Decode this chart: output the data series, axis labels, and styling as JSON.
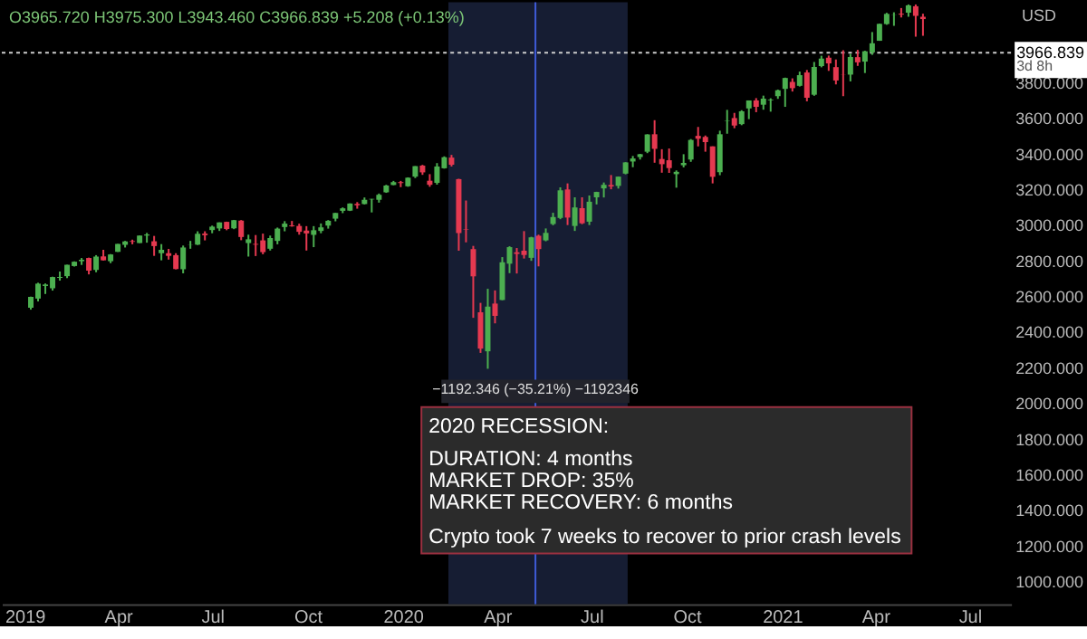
{
  "chart_data": {
    "type": "candlestick",
    "subtitle": "O3965.720 H3975.300 L3943.460 C3966.839 +5.208 (+0.13%)",
    "ylabel": "USD",
    "x": [
      "2019-01-07",
      "2019-01-14",
      "2019-01-21",
      "2019-01-28",
      "2019-02-04",
      "2019-02-11",
      "2019-02-18",
      "2019-02-25",
      "2019-03-04",
      "2019-03-11",
      "2019-03-18",
      "2019-03-25",
      "2019-04-01",
      "2019-04-08",
      "2019-04-15",
      "2019-04-22",
      "2019-04-29",
      "2019-05-06",
      "2019-05-13",
      "2019-05-20",
      "2019-05-27",
      "2019-06-03",
      "2019-06-10",
      "2019-06-17",
      "2019-06-24",
      "2019-07-01",
      "2019-07-08",
      "2019-07-15",
      "2019-07-22",
      "2019-07-29",
      "2019-08-05",
      "2019-08-12",
      "2019-08-19",
      "2019-08-26",
      "2019-09-02",
      "2019-09-09",
      "2019-09-16",
      "2019-09-23",
      "2019-09-30",
      "2019-10-07",
      "2019-10-14",
      "2019-10-21",
      "2019-10-28",
      "2019-11-04",
      "2019-11-11",
      "2019-11-18",
      "2019-11-25",
      "2019-12-02",
      "2019-12-09",
      "2019-12-16",
      "2019-12-23",
      "2019-12-30",
      "2020-01-06",
      "2020-01-13",
      "2020-01-20",
      "2020-01-27",
      "2020-02-03",
      "2020-02-10",
      "2020-02-17",
      "2020-02-24",
      "2020-03-02",
      "2020-03-09",
      "2020-03-16",
      "2020-03-23",
      "2020-03-30",
      "2020-04-06",
      "2020-04-13",
      "2020-04-20",
      "2020-04-27",
      "2020-05-04",
      "2020-05-11",
      "2020-05-18",
      "2020-05-25",
      "2020-06-01",
      "2020-06-08",
      "2020-06-15",
      "2020-06-22",
      "2020-06-29",
      "2020-07-06",
      "2020-07-13",
      "2020-07-20",
      "2020-07-27",
      "2020-08-03",
      "2020-08-10",
      "2020-08-17",
      "2020-08-24",
      "2020-08-31",
      "2020-09-07",
      "2020-09-14",
      "2020-09-21",
      "2020-09-28",
      "2020-10-05",
      "2020-10-12",
      "2020-10-19",
      "2020-10-26",
      "2020-11-02",
      "2020-11-09",
      "2020-11-16",
      "2020-11-23",
      "2020-11-30",
      "2020-12-07",
      "2020-12-14",
      "2020-12-21",
      "2020-12-28",
      "2021-01-04",
      "2021-01-11",
      "2021-01-18",
      "2021-01-25",
      "2021-02-01",
      "2021-02-08",
      "2021-02-15",
      "2021-02-22",
      "2021-03-01",
      "2021-03-08",
      "2021-03-15",
      "2021-03-22",
      "2021-03-29",
      "2021-04-05",
      "2021-04-12",
      "2021-04-19",
      "2021-04-26",
      "2021-05-03",
      "2021-05-10",
      "2021-05-17"
    ],
    "ohlc": [
      [
        2535,
        2597,
        2524,
        2596
      ],
      [
        2586,
        2675,
        2570,
        2670
      ],
      [
        2657,
        2671,
        2612,
        2665
      ],
      [
        2644,
        2709,
        2631,
        2707
      ],
      [
        2703,
        2738,
        2687,
        2708
      ],
      [
        2712,
        2776,
        2701,
        2776
      ],
      [
        2769,
        2795,
        2766,
        2793
      ],
      [
        2796,
        2814,
        2775,
        2804
      ],
      [
        2814,
        2816,
        2722,
        2743
      ],
      [
        2747,
        2830,
        2734,
        2822
      ],
      [
        2823,
        2860,
        2800,
        2801
      ],
      [
        2796,
        2836,
        2785,
        2834
      ],
      [
        2848,
        2893,
        2848,
        2893
      ],
      [
        2888,
        2910,
        2873,
        2907
      ],
      [
        2909,
        2917,
        2891,
        2905
      ],
      [
        2898,
        2940,
        2898,
        2940
      ],
      [
        2940,
        2955,
        2900,
        2946
      ],
      [
        2908,
        2938,
        2826,
        2881
      ],
      [
        2841,
        2892,
        2801,
        2860
      ],
      [
        2841,
        2865,
        2805,
        2826
      ],
      [
        2830,
        2841,
        2750,
        2752
      ],
      [
        2751,
        2884,
        2728,
        2873
      ],
      [
        2886,
        2910,
        2866,
        2887
      ],
      [
        2889,
        2964,
        2887,
        2950
      ],
      [
        2951,
        2964,
        2913,
        2942
      ],
      [
        2971,
        2996,
        2953,
        2990
      ],
      [
        2980,
        3014,
        2966,
        3014
      ],
      [
        3017,
        3018,
        2970,
        2977
      ],
      [
        2981,
        3028,
        2976,
        3026
      ],
      [
        3024,
        3027,
        2914,
        2932
      ],
      [
        2898,
        2945,
        2822,
        2919
      ],
      [
        2893,
        2943,
        2825,
        2889
      ],
      [
        2913,
        2951,
        2835,
        2847
      ],
      [
        2866,
        2940,
        2856,
        2926
      ],
      [
        2910,
        2985,
        2891,
        2979
      ],
      [
        2988,
        3021,
        2964,
        3007
      ],
      [
        2997,
        3022,
        2990,
        2992
      ],
      [
        2994,
        3007,
        2945,
        2961
      ],
      [
        2968,
        2993,
        2856,
        2952
      ],
      [
        2944,
        2993,
        2875,
        2970
      ],
      [
        2966,
        3008,
        2953,
        2986
      ],
      [
        2996,
        3027,
        2979,
        3023
      ],
      [
        3035,
        3067,
        3020,
        3067
      ],
      [
        3079,
        3098,
        3066,
        3093
      ],
      [
        3080,
        3121,
        3078,
        3120
      ],
      [
        3118,
        3128,
        3091,
        3110
      ],
      [
        3117,
        3154,
        3115,
        3141
      ],
      [
        3143,
        3146,
        3070,
        3146
      ],
      [
        3141,
        3176,
        3125,
        3169
      ],
      [
        3183,
        3225,
        3180,
        3221
      ],
      [
        3224,
        3247,
        3223,
        3240
      ],
      [
        3240,
        3247,
        3212,
        3235
      ],
      [
        3217,
        3267,
        3214,
        3265
      ],
      [
        3271,
        3330,
        3263,
        3330
      ],
      [
        3333,
        3337,
        3281,
        3295
      ],
      [
        3248,
        3285,
        3214,
        3225
      ],
      [
        3236,
        3347,
        3226,
        3328
      ],
      [
        3318,
        3385,
        3316,
        3380
      ],
      [
        3378,
        3393,
        3328,
        3338
      ],
      [
        3257,
        3259,
        2855,
        2954
      ],
      [
        2975,
        3137,
        2902,
        2972
      ],
      [
        2864,
        2882,
        2478,
        2711
      ],
      [
        2509,
        2562,
        2281,
        2305
      ],
      [
        2290,
        2641,
        2192,
        2541
      ],
      [
        2558,
        2632,
        2447,
        2489
      ],
      [
        2578,
        2819,
        2577,
        2790
      ],
      [
        2782,
        2880,
        2729,
        2875
      ],
      [
        2846,
        2870,
        2727,
        2837
      ],
      [
        2855,
        2965,
        2811,
        2831
      ],
      [
        2815,
        2933,
        2798,
        2930
      ],
      [
        2939,
        2945,
        2767,
        2864
      ],
      [
        2913,
        2980,
        2908,
        2955
      ],
      [
        3005,
        3068,
        2998,
        3044
      ],
      [
        3039,
        3211,
        3032,
        3194
      ],
      [
        3199,
        3233,
        2999,
        3041
      ],
      [
        2994,
        3155,
        2966,
        3098
      ],
      [
        3094,
        3155,
        3004,
        3009
      ],
      [
        3018,
        3165,
        2999,
        3130
      ],
      [
        3155,
        3186,
        3115,
        3185
      ],
      [
        3205,
        3238,
        3154,
        3225
      ],
      [
        3224,
        3280,
        3200,
        3216
      ],
      [
        3219,
        3272,
        3204,
        3271
      ],
      [
        3288,
        3352,
        3284,
        3351
      ],
      [
        3356,
        3387,
        3324,
        3373
      ],
      [
        3381,
        3399,
        3367,
        3397
      ],
      [
        3411,
        3509,
        3403,
        3508
      ],
      [
        3509,
        3588,
        3349,
        3427
      ],
      [
        3370,
        3425,
        3293,
        3341
      ],
      [
        3363,
        3429,
        3292,
        3319
      ],
      [
        3285,
        3306,
        3209,
        3298
      ],
      [
        3335,
        3397,
        3323,
        3348
      ],
      [
        3367,
        3482,
        3354,
        3477
      ],
      [
        3500,
        3550,
        3441,
        3484
      ],
      [
        3494,
        3502,
        3411,
        3465
      ],
      [
        3441,
        3441,
        3233,
        3270
      ],
      [
        3296,
        3529,
        3279,
        3509
      ],
      [
        3583,
        3646,
        3512,
        3585
      ],
      [
        3600,
        3629,
        3543,
        3558
      ],
      [
        3566,
        3644,
        3560,
        3638
      ],
      [
        3654,
        3699,
        3594,
        3699
      ],
      [
        3699,
        3712,
        3633,
        3663
      ],
      [
        3675,
        3726,
        3647,
        3709
      ],
      [
        3699,
        3711,
        3636,
        3703
      ],
      [
        3723,
        3760,
        3708,
        3756
      ],
      [
        3764,
        3827,
        3663,
        3825
      ],
      [
        3803,
        3823,
        3749,
        3768
      ],
      [
        3781,
        3861,
        3777,
        3841
      ],
      [
        3856,
        3870,
        3694,
        3714
      ],
      [
        3731,
        3915,
        3725,
        3887
      ],
      [
        3892,
        3950,
        3885,
        3934
      ],
      [
        3939,
        3951,
        3865,
        3907
      ],
      [
        3886,
        3929,
        3789,
        3811
      ],
      [
        3842,
        3981,
        3723,
        3841
      ],
      [
        3844,
        3960,
        3806,
        3943
      ],
      [
        3942,
        3983,
        3893,
        3913
      ],
      [
        3917,
        3978,
        3853,
        3975
      ],
      [
        3969,
        4083,
        3955,
        4020
      ],
      [
        4034,
        4130,
        4034,
        4129
      ],
      [
        4128,
        4191,
        4124,
        4185
      ],
      [
        4179,
        4194,
        4118,
        4180
      ],
      [
        4186,
        4218,
        4165,
        4181
      ],
      [
        4192,
        4238,
        4169,
        4233
      ],
      [
        4228,
        4238,
        4057,
        4174
      ],
      [
        4169,
        4186,
        4062,
        4156
      ]
    ],
    "colors": [
      "#4caf50",
      "#4caf50",
      "#4caf50",
      "#4caf50",
      "#4caf50",
      "#4caf50",
      "#4caf50",
      "#4caf50",
      "#e53950",
      "#4caf50",
      "#e53950",
      "#4caf50",
      "#4caf50",
      "#4caf50",
      "#e53950",
      "#4caf50",
      "#4caf50",
      "#e53950",
      "#4caf50",
      "#e53950",
      "#e53950",
      "#4caf50",
      "#4caf50",
      "#4caf50",
      "#e53950",
      "#4caf50",
      "#4caf50",
      "#e53950",
      "#4caf50",
      "#e53950",
      "#4caf50",
      "#e53950",
      "#e53950",
      "#4caf50",
      "#4caf50",
      "#4caf50",
      "#e53950",
      "#e53950",
      "#e53950",
      "#4caf50",
      "#4caf50",
      "#4caf50",
      "#4caf50",
      "#4caf50",
      "#4caf50",
      "#e53950",
      "#4caf50",
      "#4caf50",
      "#4caf50",
      "#4caf50",
      "#4caf50",
      "#e53950",
      "#4caf50",
      "#4caf50",
      "#e53950",
      "#e53950",
      "#4caf50",
      "#4caf50",
      "#e53950",
      "#e53950",
      "#e53950",
      "#e53950",
      "#e53950",
      "#4caf50",
      "#e53950",
      "#4caf50",
      "#4caf50",
      "#e53950",
      "#e53950",
      "#4caf50",
      "#e53950",
      "#4caf50",
      "#4caf50",
      "#4caf50",
      "#e53950",
      "#4caf50",
      "#e53950",
      "#4caf50",
      "#4caf50",
      "#4caf50",
      "#e53950",
      "#4caf50",
      "#4caf50",
      "#4caf50",
      "#4caf50",
      "#4caf50",
      "#e53950",
      "#e53950",
      "#e53950",
      "#4caf50",
      "#4caf50",
      "#4caf50",
      "#e53950",
      "#e53950",
      "#e53950",
      "#4caf50",
      "#4caf50",
      "#e53950",
      "#4caf50",
      "#4caf50",
      "#e53950",
      "#4caf50",
      "#4caf50",
      "#4caf50",
      "#4caf50",
      "#e53950",
      "#4caf50",
      "#e53950",
      "#4caf50",
      "#4caf50",
      "#e53950",
      "#e53950",
      "#e53950",
      "#4caf50",
      "#e53950",
      "#4caf50",
      "#4caf50",
      "#4caf50",
      "#4caf50",
      "#4caf50",
      "#e53950",
      "#4caf50",
      "#e53950",
      "#e53950"
    ],
    "xlim": [
      "2018-12-10",
      "2021-08-10"
    ],
    "xticks": [
      {
        "value": "2019-01-01",
        "label": "2019"
      },
      {
        "value": "2019-04-01",
        "label": "Apr"
      },
      {
        "value": "2019-07-01",
        "label": "Jul"
      },
      {
        "value": "2019-10-01",
        "label": "Oct"
      },
      {
        "value": "2020-01-01",
        "label": "2020"
      },
      {
        "value": "2020-04-01",
        "label": "Apr"
      },
      {
        "value": "2020-07-01",
        "label": "Jul"
      },
      {
        "value": "2020-10-01",
        "label": "Oct"
      },
      {
        "value": "2021-01-01",
        "label": "2021"
      },
      {
        "value": "2021-04-01",
        "label": "Apr"
      },
      {
        "value": "2021-07-01",
        "label": "Jul"
      }
    ],
    "ylim": [
      870,
      4250
    ],
    "yticks": [
      {
        "value": 1000,
        "label": "1000.000"
      },
      {
        "value": 1200,
        "label": "1200.000"
      },
      {
        "value": 1400,
        "label": "1400.000"
      },
      {
        "value": 1600,
        "label": "1600.000"
      },
      {
        "value": 1800,
        "label": "1800.000"
      },
      {
        "value": 2000,
        "label": "2000.000"
      },
      {
        "value": 2200,
        "label": "2200.000"
      },
      {
        "value": 2400,
        "label": "2400.000"
      },
      {
        "value": 2600,
        "label": "2600.000"
      },
      {
        "value": 2800,
        "label": "2800.000"
      },
      {
        "value": 3000,
        "label": "3000.000"
      },
      {
        "value": 3200,
        "label": "3200.000"
      },
      {
        "value": 3400,
        "label": "3400.000"
      },
      {
        "value": 3600,
        "label": "3600.000"
      },
      {
        "value": 3800,
        "label": "3800.000"
      }
    ],
    "ref_lines": [
      {
        "axis": "y",
        "value": 3966.839,
        "label": "3966.839",
        "color": "#cccccc",
        "line_style": "dotted"
      },
      {
        "axis": "x",
        "value": "2020-05-08",
        "color": "#3f5bd8",
        "line_style": "solid"
      }
    ],
    "bands": [
      {
        "axis": "x",
        "from": "2020-02-14",
        "to": "2020-08-05",
        "color": "#161d33"
      }
    ],
    "annotations": [
      {
        "text": "−1192.346 (−35.21%) −1192346",
        "x": "2020-05-08",
        "y": 2192
      },
      "3d 8h",
      "2020 RECESSION:",
      "DURATION: 4 months",
      "MARKET DROP: 35%",
      "MARKET RECOVERY: 6 months",
      "Crypto took 7 weeks to recover to prior crash levels"
    ],
    "grid": false
  }
}
